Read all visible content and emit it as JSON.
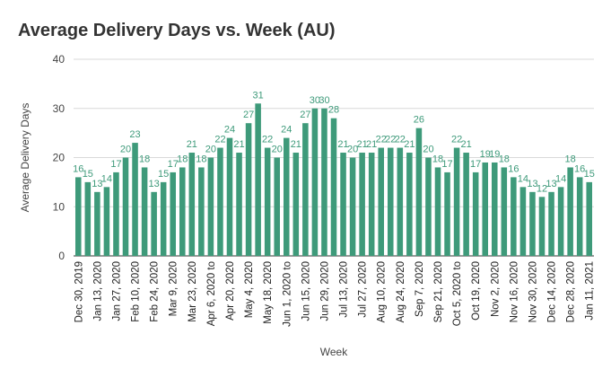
{
  "chart_data": {
    "type": "bar",
    "title": "Average Delivery Days vs. Week (AU)",
    "xlabel": "Week",
    "ylabel": "Average Delivery Days",
    "ylim": [
      0,
      40
    ],
    "yticks": [
      0,
      10,
      20,
      30,
      40
    ],
    "grid": true,
    "legend": "none",
    "colors": {
      "bar": "#3e9a7a",
      "label": "#3e9a7a"
    },
    "categories": [
      "Dec 30, 2019",
      "",
      "Jan 13, 2020",
      "",
      "Jan 27, 2020",
      "",
      "Feb 10, 2020",
      "",
      "Feb 24, 2020",
      "",
      "Mar 9, 2020",
      "",
      "Mar 23, 2020",
      "",
      "Apr 6, 2020 to",
      "",
      "Apr 20, 2020",
      "",
      "May 4, 2020",
      "",
      "May 18, 2020",
      "",
      "Jun 1, 2020 to",
      "",
      "Jun 15, 2020",
      "",
      "Jun 29, 2020",
      "",
      "Jul 13, 2020",
      "",
      "Jul 27, 2020",
      "",
      "Aug 10, 2020",
      "",
      "Aug 24, 2020",
      "",
      "Sep 7, 2020",
      "",
      "Sep 21, 2020",
      "",
      "Oct 5, 2020 to",
      "",
      "Oct 19, 2020",
      "",
      "Nov 2, 2020",
      "",
      "Nov 16, 2020",
      "",
      "Nov 30, 2020",
      "",
      "Dec 14, 2020",
      "",
      "Dec 28, 2020",
      "",
      "Jan 11, 2021"
    ],
    "values": [
      16,
      15,
      13,
      14,
      17,
      20,
      23,
      18,
      13,
      15,
      17,
      18,
      21,
      18,
      20,
      22,
      24,
      21,
      27,
      31,
      22,
      20,
      24,
      21,
      27,
      30,
      30,
      28,
      21,
      20,
      21,
      21,
      22,
      22,
      22,
      21,
      26,
      20,
      18,
      17,
      22,
      21,
      17,
      19,
      19,
      18,
      16,
      14,
      13,
      12,
      13,
      14,
      18,
      16,
      15
    ]
  }
}
